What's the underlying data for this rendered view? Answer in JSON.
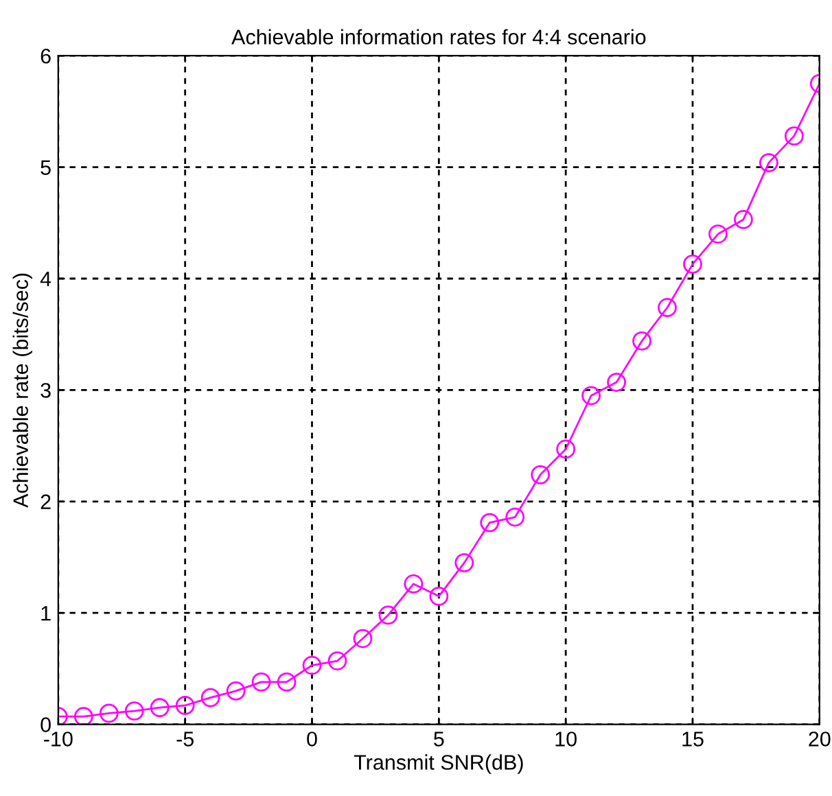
{
  "chart_data": {
    "type": "line",
    "title": "Achievable information rates for 4:4 scenario",
    "xlabel": "Transmit SNR(dB)",
    "ylabel": "Achievable rate (bits/sec)",
    "x": [
      -10,
      -9,
      -8,
      -7,
      -6,
      -5,
      -4,
      -3,
      -2,
      -1,
      0,
      1,
      2,
      3,
      4,
      5,
      6,
      7,
      8,
      9,
      10,
      11,
      12,
      13,
      14,
      15,
      16,
      17,
      18,
      19,
      20
    ],
    "series": [
      {
        "color": "#ff00ff",
        "values": [
          0.07,
          0.07,
          0.1,
          0.12,
          0.15,
          0.17,
          0.24,
          0.3,
          0.38,
          0.38,
          0.53,
          0.57,
          0.77,
          0.98,
          1.26,
          1.15,
          1.45,
          1.81,
          1.86,
          2.24,
          2.47,
          2.95,
          3.07,
          3.44,
          3.74,
          4.13,
          4.4,
          4.53,
          5.04,
          5.28,
          5.75
        ]
      }
    ],
    "xlim": [
      -10,
      20
    ],
    "xticks": [
      -10,
      -5,
      0,
      5,
      10,
      15,
      20
    ],
    "ylim": [
      0,
      6
    ],
    "yticks": [
      0,
      1,
      2,
      3,
      4,
      5,
      6
    ],
    "grid": true,
    "marker": "circle",
    "line_style": "solid"
  }
}
